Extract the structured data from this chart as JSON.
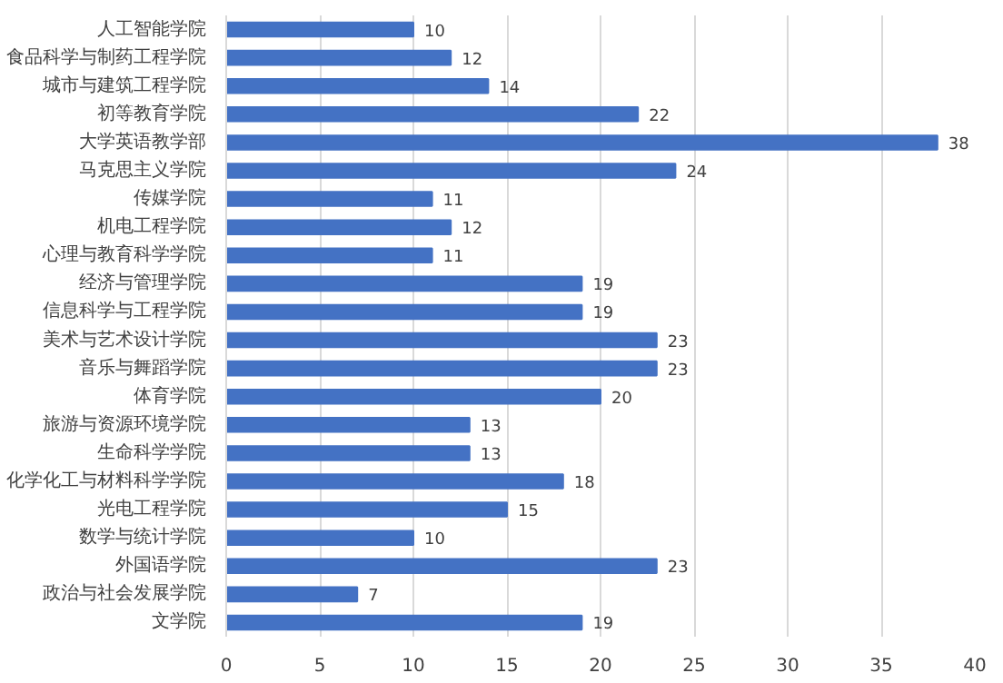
{
  "chart_data": {
    "type": "bar",
    "orientation": "horizontal",
    "categories": [
      "人工智能学院",
      "食品科学与制药工程学院",
      "城市与建筑工程学院",
      "初等教育学院",
      "大学英语教学部",
      "马克思主义学院",
      "传媒学院",
      "机电工程学院",
      "心理与教育科学学院",
      "经济与管理学院",
      "信息科学与工程学院",
      "美术与艺术设计学院",
      "音乐与舞蹈学院",
      "体育学院",
      "旅游与资源环境学院",
      "生命科学学院",
      "化学化工与材料科学学院",
      "光电工程学院",
      "数学与统计学院",
      "外国语学院",
      "政治与社会发展学院",
      "文学院"
    ],
    "values": [
      10,
      12,
      14,
      22,
      38,
      24,
      11,
      12,
      11,
      19,
      19,
      23,
      23,
      20,
      13,
      13,
      18,
      15,
      10,
      23,
      7,
      19
    ],
    "color": "#4472c4",
    "xlim": [
      0,
      40
    ],
    "xticks": [
      0,
      5,
      10,
      15,
      20,
      25,
      30,
      35,
      40
    ],
    "grid": "x",
    "data_labels": true
  }
}
